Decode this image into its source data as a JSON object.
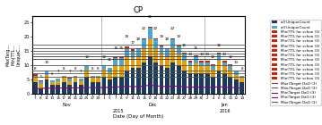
{
  "chart_data": {
    "type": "bar",
    "stacked": true,
    "title": "CP",
    "x_label": "Date (Day of Month)",
    "y_label_parts": [
      "MaxTarg...",
      "Min(TTL...",
      "UniqueC..."
    ],
    "categories": [
      "7",
      "8",
      "11",
      "13",
      "15",
      "17",
      "18",
      "21",
      "22",
      "25",
      "27",
      "29",
      "1",
      "5",
      "7",
      "8",
      "9",
      "11",
      "13",
      "15",
      "17",
      "18",
      "21",
      "22",
      "23",
      "25",
      "27",
      "28",
      "29",
      "30",
      "2",
      "4",
      "6",
      "8",
      "10",
      "12",
      "14"
    ],
    "months": [
      "Nov",
      "Nov",
      "Nov",
      "Nov",
      "Nov",
      "Nov",
      "Nov",
      "Nov",
      "Nov",
      "Nov",
      "Nov",
      "Nov",
      "Dec",
      "Dec",
      "Dec",
      "Dec",
      "Dec",
      "Dec",
      "Dec",
      "Dec",
      "Dec",
      "Dec",
      "Dec",
      "Dec",
      "Dec",
      "Dec",
      "Dec",
      "Dec",
      "Dec",
      "Dec",
      "Jan",
      "Jan",
      "Jan",
      "Jan",
      "Jan",
      "Jan",
      "Jan"
    ],
    "years": [
      "2015",
      "2015",
      "2015",
      "2015",
      "2015",
      "2015",
      "2015",
      "2015",
      "2015",
      "2015",
      "2015",
      "2015",
      "2015",
      "2015",
      "2015",
      "2015",
      "2015",
      "2015",
      "2015",
      "2015",
      "2015",
      "2015",
      "2015",
      "2015",
      "2015",
      "2015",
      "2015",
      "2015",
      "2015",
      "2015",
      "2016",
      "2016",
      "2016",
      "2016",
      "2016",
      "2016",
      "2016"
    ],
    "series": [
      {
        "type": "bar",
        "color": "#1a3a5c",
        "values": [
          4,
          2,
          5,
          3,
          3,
          4,
          3,
          4,
          3,
          6,
          4,
          4,
          6,
          5,
          6,
          6,
          8,
          9,
          9,
          11,
          13,
          11,
          10,
          9,
          11,
          10,
          8,
          7,
          7,
          7,
          7,
          6,
          8,
          7,
          6,
          5,
          4
        ]
      },
      {
        "type": "bar",
        "color": "#E8A000",
        "values": [
          1.5,
          1.5,
          1.5,
          1,
          1.5,
          1.5,
          1.5,
          1.5,
          1.5,
          2.5,
          1.5,
          1.5,
          2.5,
          2.5,
          4,
          4,
          5,
          3.5,
          4,
          5,
          6,
          5,
          4,
          4,
          5,
          4,
          3.5,
          2.5,
          3.5,
          2.5,
          2.5,
          2.5,
          3.5,
          2.5,
          2.5,
          1.5,
          1.5
        ]
      },
      {
        "type": "bar",
        "color": "#4da6d0",
        "values": [
          0.8,
          0.8,
          1.5,
          0.8,
          0.8,
          0.8,
          0.8,
          0.8,
          0.8,
          1.5,
          0.8,
          0.8,
          1.5,
          1.5,
          2.5,
          2.5,
          3,
          2.5,
          2.5,
          3,
          4,
          3,
          2.5,
          2.5,
          3,
          2.5,
          2.5,
          1.5,
          2.5,
          1.5,
          1.5,
          1.5,
          2.5,
          1.5,
          1.5,
          1.5,
          0.8
        ]
      },
      {
        "type": "bar",
        "color": "#cc2200",
        "values": [
          0.4,
          0.4,
          0,
          0,
          0,
          0,
          0.4,
          0,
          0,
          0,
          0,
          0,
          0,
          0,
          0.4,
          0.4,
          0.4,
          0.4,
          0.4,
          0.4,
          0.4,
          0.4,
          0.4,
          0.4,
          0.4,
          0.4,
          0.4,
          0.4,
          0.4,
          0.4,
          0.4,
          0.4,
          0.4,
          0.4,
          0.4,
          0,
          0
        ]
      },
      {
        "type": "line",
        "color": "#8B008B",
        "values": [
          1.8,
          1.8,
          2.0,
          1.9,
          2.0,
          2.0,
          2.0,
          2.1,
          2.0,
          2.2,
          2.1,
          2.1,
          2.2,
          2.2,
          2.4,
          2.4,
          2.6,
          2.5,
          2.5,
          2.7,
          3.0,
          2.8,
          2.6,
          2.5,
          2.7,
          2.6,
          2.4,
          2.2,
          2.4,
          2.2,
          2.3,
          2.2,
          2.5,
          2.3,
          2.2,
          2.1,
          2.0
        ]
      }
    ],
    "totals": [
      8,
      5,
      10,
      6,
      7,
      8,
      7,
      8,
      7,
      12,
      8,
      8,
      12,
      11,
      15,
      15,
      19,
      17,
      18,
      22,
      26,
      22,
      19,
      18,
      22,
      19,
      16,
      13,
      15,
      13,
      13,
      12,
      16,
      13,
      12,
      10,
      8
    ],
    "reference_lines": [
      {
        "y": 17.0,
        "color": "#555555"
      },
      {
        "y": 16.0,
        "color": "#555555"
      },
      {
        "y": 15.0,
        "color": "#555555"
      },
      {
        "y": 14.0,
        "color": "#555555"
      },
      {
        "y": 13.0,
        "color": "#333333"
      },
      {
        "y": 12.0,
        "color": "#333333"
      },
      {
        "y": 10.0,
        "color": "#555555"
      },
      {
        "y": 8.0,
        "color": "#555555"
      },
      {
        "y": 7.0,
        "color": "#555555"
      },
      {
        "y": 6.0,
        "color": "#555555"
      }
    ],
    "ylim": [
      0,
      27
    ],
    "yticks": [
      0,
      5,
      10,
      15,
      20,
      25
    ],
    "grid": false,
    "legend": "center right",
    "legend_entries": [
      {
        "label": "all UniqueCount",
        "color": "#1a3a5c",
        "marker": "square"
      },
      {
        "label": "all UniqueCount",
        "color": "#4da6d0",
        "marker": "square"
      },
      {
        "label": "Min(TTL for schoo (3)",
        "color": "#cc2200",
        "marker": "square"
      },
      {
        "label": "Min(TTL for schoo (1)",
        "color": "#cc2200",
        "marker": "square"
      },
      {
        "label": "Min(TTL for schoo (3)",
        "color": "#cc2200",
        "marker": "square"
      },
      {
        "label": "Min(TTL for schoo (3)",
        "color": "#cc2200",
        "marker": "square"
      },
      {
        "label": "Min(TTL for schoo (3)",
        "color": "#cc2200",
        "marker": "square"
      },
      {
        "label": "Min(TTL for schoo (3)",
        "color": "#cc2200",
        "marker": "square"
      },
      {
        "label": "Min(TTL for schoo (3)",
        "color": "#cc2200",
        "marker": "square"
      },
      {
        "label": "Min(TTL for schoo (3)",
        "color": "#cc2200",
        "marker": "square"
      },
      {
        "label": "Min(TTL for schoo (3)",
        "color": "#cc2200",
        "marker": "square"
      },
      {
        "label": "Min(TTL for schoo (3)",
        "color": "#cc2200",
        "marker": "square"
      },
      {
        "label": "Min(TTL for schoo (3)",
        "color": "#cc2200",
        "marker": "square"
      },
      {
        "label": "Max(Target DaO (3)",
        "color": "#555555",
        "line_style": "solid"
      },
      {
        "label": "Max(Target DaO (3)",
        "color": "#555555",
        "line_style": "solid"
      },
      {
        "label": "Min(Target DaO (3)",
        "color": "#8B008B",
        "line_style": "solid"
      },
      {
        "label": "Min(Target DaO (3)",
        "color": "#8B008B",
        "line_style": "solid"
      },
      {
        "label": "Max(Target DaO (3)",
        "color": "#555555",
        "line_style": "solid"
      }
    ]
  }
}
